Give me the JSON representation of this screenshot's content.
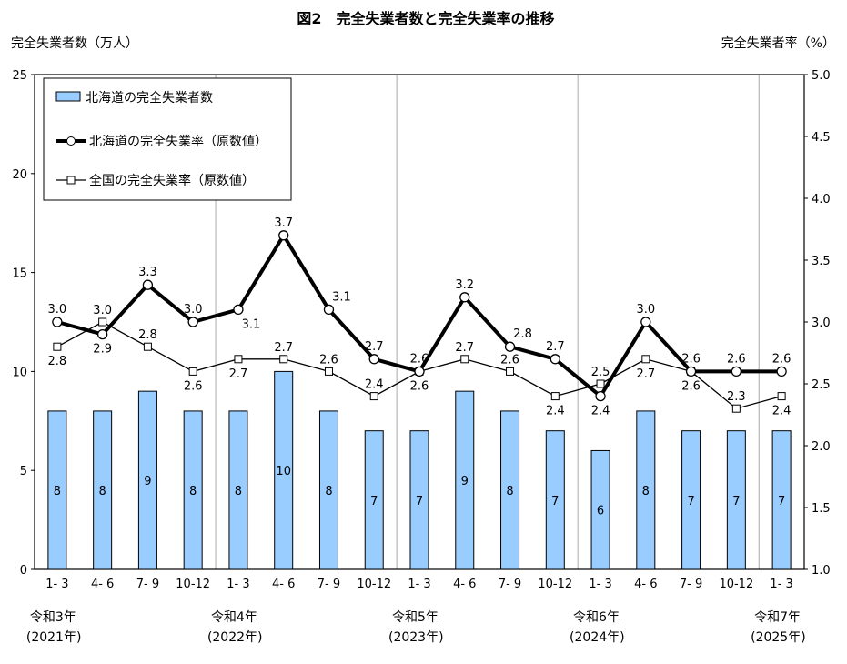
{
  "chart_data": {
    "type": "bar+line",
    "title": "図2　完全失業者数と完全失業率の推移",
    "ylabel_left": "完全失業者数（万人）",
    "ylabel_right": "完全失業者率（%）",
    "ylim_left": [
      0,
      25
    ],
    "yticks_left": [
      "0",
      "5",
      "10",
      "15",
      "20",
      "25"
    ],
    "ylim_right": [
      1.0,
      5.0
    ],
    "yticks_right": [
      "1.0",
      "1.5",
      "2.0",
      "2.5",
      "3.0",
      "3.5",
      "4.0",
      "4.5",
      "5.0"
    ],
    "categories": [
      "1- 3",
      "4- 6",
      "7- 9",
      "10-12",
      "1- 3",
      "4- 6",
      "7- 9",
      "10-12",
      "1- 3",
      "4- 6",
      "7- 9",
      "10-12",
      "1- 3",
      "4- 6",
      "7- 9",
      "10-12",
      "1- 3"
    ],
    "year_groups": [
      {
        "era": "令和3年",
        "year": "(2021年)"
      },
      {
        "era": "令和4年",
        "year": "(2022年)"
      },
      {
        "era": "令和5年",
        "year": "(2023年)"
      },
      {
        "era": "令和6年",
        "year": "(2024年)"
      },
      {
        "era": "令和7年",
        "year": "(2025年)"
      }
    ],
    "legend_placement": "top-left",
    "grid": "vertical separators between years",
    "series": [
      {
        "name": "北海道の完全失業者数",
        "type": "bar",
        "axis": "left",
        "color": "#99CCFF",
        "values": [
          8,
          8,
          9,
          8,
          8,
          10,
          8,
          7,
          7,
          9,
          8,
          7,
          6,
          8,
          7,
          7,
          7
        ]
      },
      {
        "name": "北海道の完全失業率（原数値）",
        "type": "line",
        "axis": "right",
        "color": "#000000",
        "marker": "circle",
        "values": [
          3.0,
          2.9,
          3.3,
          3.0,
          3.1,
          3.7,
          3.1,
          2.7,
          2.6,
          3.2,
          2.8,
          2.7,
          2.4,
          3.0,
          2.6,
          2.6,
          2.6
        ]
      },
      {
        "name": "全国の完全失業率（原数値）",
        "type": "line",
        "axis": "right",
        "color": "#000000",
        "marker": "square",
        "values": [
          2.8,
          3.0,
          2.8,
          2.6,
          2.7,
          2.7,
          2.6,
          2.4,
          2.6,
          2.7,
          2.6,
          2.4,
          2.5,
          2.7,
          2.6,
          2.3,
          2.4
        ]
      }
    ]
  }
}
